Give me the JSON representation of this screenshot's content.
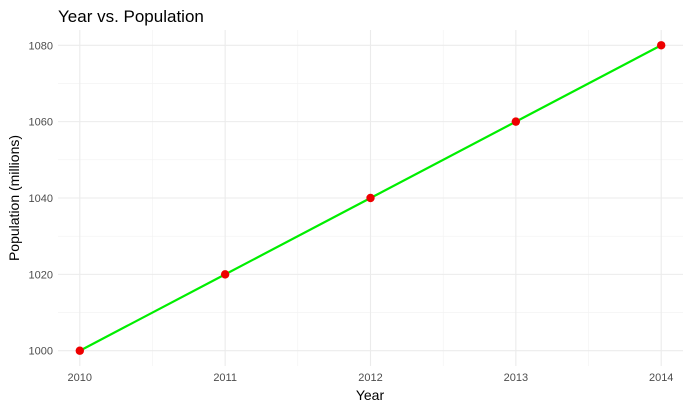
{
  "chart_data": {
    "type": "line",
    "title": "Year vs. Population",
    "xlabel": "Year",
    "ylabel": "Population (millions)",
    "x": [
      2010,
      2011,
      2012,
      2013,
      2014
    ],
    "series": [
      {
        "values": [
          1000,
          1020,
          1040,
          1060,
          1080
        ],
        "line_color": "#00ee00",
        "point_color": "#ee0000"
      }
    ],
    "x_ticks": [
      "2010",
      "2011",
      "2012",
      "2013",
      "2014"
    ],
    "y_ticks": [
      "1000",
      "1020",
      "1040",
      "1060",
      "1080"
    ],
    "xlim": [
      2009.85,
      2014.15
    ],
    "ylim": [
      996,
      1084
    ],
    "grid": true,
    "legend": "none"
  }
}
